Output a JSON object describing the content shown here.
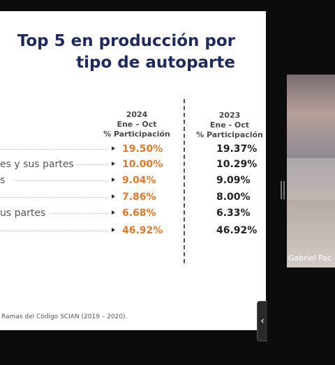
{
  "slide": {
    "title_line1": "Top 5 en producción por",
    "title_line2": "tipo de autoparte",
    "col2024": {
      "year": "2024",
      "range": "Ene – Oct",
      "label": "% Participación"
    },
    "col2023": {
      "year": "2023",
      "range": "Ene - Oct",
      "label": "% Participación"
    },
    "rows": [
      {
        "label": "",
        "v2024": "19.50%",
        "v2023": "19.37%"
      },
      {
        "label": "es y sus partes",
        "v2024": "10.00%",
        "v2023": "10.29%"
      },
      {
        "label": "s",
        "v2024": "9.04%",
        "v2023": "9.09%"
      },
      {
        "label": "",
        "v2024": "7.86%",
        "v2023": "8.00%"
      },
      {
        "label": "us partes",
        "v2024": "6.68%",
        "v2023": "6.33%"
      },
      {
        "label": "",
        "v2024": "46.92%",
        "v2023": "46.92%"
      }
    ],
    "source": "Ramas del Código SCIAN (2019 – 2020)."
  },
  "video": {
    "participant_name": "Gabriel Pac"
  },
  "controls": {
    "collapse_label": "‹"
  },
  "colors": {
    "accent_orange": "#e07a2a",
    "title_blue": "#1d2a5b"
  }
}
